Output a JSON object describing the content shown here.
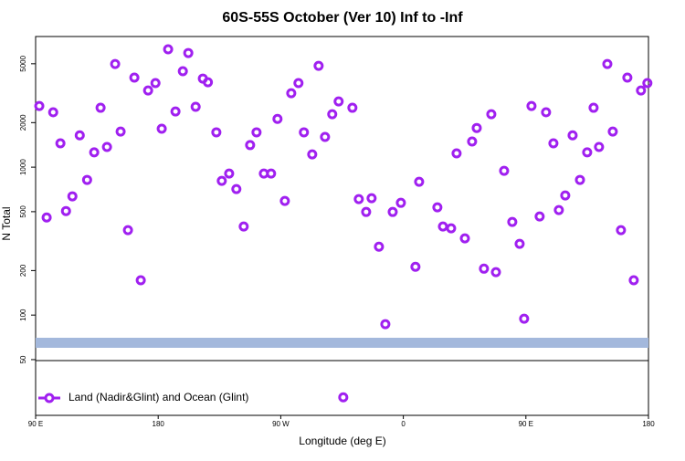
{
  "chart_data": {
    "type": "scatter",
    "title": "60S-55S October (Ver 10)   Inf to -Inf",
    "x_label": "Longitude (deg E)",
    "y_label": "N Total",
    "x": [
      92.7,
      98.1,
      102.9,
      108.2,
      112.3,
      117.0,
      122.4,
      127.8,
      133.0,
      137.7,
      142.4,
      148.4,
      152.4,
      157.8,
      162.5,
      167.2,
      172.6,
      178.0,
      182.6,
      187.3,
      192.7,
      198.1,
      202.1,
      207.5,
      212.8,
      216.5,
      222.7,
      226.7,
      232.1,
      237.4,
      242.8,
      247.5,
      252.2,
      257.6,
      262.9,
      267.6,
      273.0,
      277.7,
      283.0,
      287.0,
      293.1,
      297.8,
      302.5,
      307.8,
      312.5,
      315.9,
      322.6,
      327.3,
      332.7,
      336.7,
      342.1,
      346.8,
      352.2,
      358.2,
      368.9,
      371.6,
      385.0,
      389.1,
      395.1,
      399.1,
      405.2,
      410.5,
      413.9,
      419.2,
      424.6,
      428.0,
      434.0,
      440.0,
      445.4,
      448.7,
      454.1,
      460.1,
      464.8,
      470.2,
      474.2,
      478.9,
      484.3,
      489.7,
      495.0,
      499.7,
      503.7,
      509.8,
      513.8,
      519.8,
      524.5,
      529.2,
      534.5,
      539.2
    ],
    "series": [
      {
        "name": "Land (Nadir&Glint) and Ocean (Glint)",
        "color": "#a020f0",
        "values": [
          2590,
          457,
          2350,
          1450,
          505,
          635,
          1640,
          820,
          1260,
          2520,
          1370,
          4980,
          1740,
          375,
          4030,
          172,
          3300,
          3700,
          1820,
          6260,
          2380,
          4450,
          5910,
          2560,
          3970,
          3750,
          1720,
          808,
          905,
          711,
          397,
          1410,
          1720,
          905,
          905,
          2120,
          591,
          3160,
          3700,
          1720,
          1220,
          4840,
          1600,
          2280,
          2780,
          27.8,
          2520,
          608,
          498,
          617,
          290,
          86.8,
          498,
          574,
          212,
          796,
          535,
          397,
          386,
          1240,
          330,
          1490,
          1840,
          206,
          2280,
          195,
          945,
          426,
          303,
          94.5,
          2590,
          464,
          2350,
          1450,
          513,
          644,
          1640,
          820,
          1260,
          2520,
          1370,
          4980,
          1740,
          375,
          4030,
          172,
          3300,
          3700
        ]
      }
    ],
    "xlim": [
      90,
      540
    ],
    "xticks": [
      {
        "value": 90,
        "label": "90 E"
      },
      180,
      {
        "value": 270,
        "label": "90 W"
      },
      {
        "value": 360,
        "label": "0"
      },
      {
        "value": 450,
        "label": "90 E"
      },
      {
        "value": 540,
        "label": "180"
      }
    ],
    "ylim": [
      21,
      7640
    ],
    "log_y": true,
    "yticks": [
      50,
      100,
      200,
      500,
      1000,
      2000,
      5000
    ],
    "legend": "bottom-left"
  }
}
